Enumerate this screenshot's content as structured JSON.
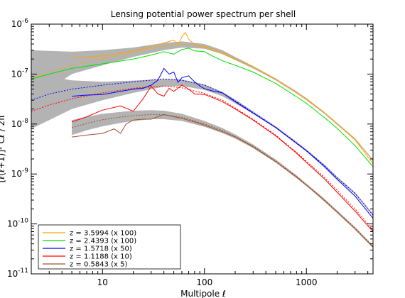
{
  "chart_data": {
    "type": "line",
    "title": "Lensing potential power spectrum per shell",
    "xlabel": "Multipole  ℓ",
    "ylabel": "[ℓ(ℓ+1)]² Cℓ / 2π",
    "xscale": "log",
    "yscale": "log",
    "xlim": [
      2,
      4500
    ],
    "ylim": [
      1e-11,
      1e-06
    ],
    "x_ticks": [
      {
        "value": 10,
        "label": "10"
      },
      {
        "value": 100,
        "label": "100"
      },
      {
        "value": 1000,
        "label": "1000"
      }
    ],
    "y_ticks": [
      {
        "value": 1e-11,
        "exp": "-11"
      },
      {
        "value": 1e-10,
        "exp": "-10"
      },
      {
        "value": 1e-09,
        "exp": "-9"
      },
      {
        "value": 1e-08,
        "exp": "-8"
      },
      {
        "value": 1e-07,
        "exp": "-7"
      },
      {
        "value": 1e-06,
        "exp": "-6"
      }
    ],
    "legend_position": "bottom-left",
    "series": [
      {
        "name": "z = 3.5994 (x 100)",
        "color": "#ffa500",
        "band_x": [
          2,
          3,
          5,
          10,
          20,
          40,
          60,
          100,
          150,
          200,
          300,
          500,
          800,
          1000,
          1500,
          2000,
          3000,
          4500
        ],
        "band_lo": [
          2e-08,
          5e-08,
          1e-07,
          1.5e-07,
          2.2e-07,
          3e-07,
          3.4e-07,
          3.2e-07,
          2.5e-07,
          1.9e-07,
          1.3e-07,
          7.5e-08,
          4.1e-08,
          3e-08,
          1.6e-08,
          9.6e-09,
          4.8e-09,
          1.8e-09
        ],
        "band_hi": [
          3e-07,
          2.9e-07,
          2.8e-07,
          3e-07,
          3.4e-07,
          4.2e-07,
          4.5e-07,
          4e-07,
          3e-07,
          2.2e-07,
          1.45e-07,
          8.2e-08,
          4.5e-08,
          3.3e-08,
          1.75e-08,
          1.05e-08,
          5.2e-09,
          1.95e-09
        ],
        "theory_x": [
          2,
          3,
          5,
          10,
          20,
          40,
          60,
          100,
          150,
          200,
          300,
          500,
          800,
          1000,
          1500,
          2000,
          3000,
          4500
        ],
        "theory_y": [
          8e-08,
          1.1e-07,
          1.5e-07,
          2e-07,
          2.7e-07,
          3.6e-07,
          4e-07,
          3.6e-07,
          2.8e-07,
          2.05e-07,
          1.37e-07,
          7.8e-08,
          4.3e-08,
          3.15e-08,
          1.68e-08,
          1e-08,
          5e-09,
          1.85e-09
        ],
        "sim_x": [
          5,
          7,
          10,
          15,
          20,
          25,
          30,
          35,
          40,
          45,
          50,
          55,
          60,
          65,
          70,
          80,
          90,
          100,
          120,
          150,
          200,
          300,
          500,
          800,
          1000,
          1500,
          2000,
          3000,
          4500
        ],
        "sim_y": [
          2.1e-07,
          2.2e-07,
          2.3e-07,
          2.6e-07,
          2.9e-07,
          3.2e-07,
          3.6e-07,
          3.9e-07,
          4.2e-07,
          4.5e-07,
          4.8e-07,
          3.8e-07,
          5.6e-07,
          6.8e-07,
          5e-07,
          3.9e-07,
          3.6e-07,
          3.5e-07,
          3e-07,
          2.6e-07,
          2e-07,
          1.38e-07,
          7.8e-08,
          4.3e-08,
          3.1e-08,
          1.7e-08,
          1e-08,
          4.8e-09,
          1.6e-09
        ]
      },
      {
        "name": "z = 2.4393 (x 100)",
        "color": "#00e000",
        "band_x": [],
        "band_lo": [],
        "band_hi": [],
        "theory_x": [],
        "theory_y": [],
        "sim_x": [
          2,
          3,
          5,
          10,
          20,
          30,
          40,
          50,
          60,
          70,
          80,
          100,
          120,
          150,
          200,
          300,
          500,
          800,
          1000,
          1500,
          2000,
          3000,
          4500
        ],
        "sim_y": [
          8e-08,
          1e-07,
          1.3e-07,
          1.6e-07,
          2e-07,
          2.4e-07,
          2.8e-07,
          2.5e-07,
          3.1e-07,
          3.3e-07,
          2.9e-07,
          2.8e-07,
          2.3e-07,
          1.85e-07,
          1.5e-07,
          1.1e-07,
          6.5e-08,
          3.5e-08,
          2.6e-08,
          1.35e-08,
          8.2e-09,
          3.7e-09,
          1.4e-09
        ]
      },
      {
        "name": "z = 1.5718 (x 50)",
        "color": "#0000ff",
        "band_x": [
          2,
          3,
          5,
          10,
          20,
          40,
          60,
          100,
          150,
          200,
          300,
          500,
          800,
          1000,
          1500,
          2000,
          3000,
          4500
        ],
        "band_lo": [
          8e-09,
          1.2e-08,
          2e-08,
          3e-08,
          4.2e-08,
          5.6e-08,
          5.8e-08,
          4.8e-08,
          3.6e-08,
          2.6e-08,
          1.6e-08,
          8.2e-09,
          4e-09,
          2.8e-09,
          1.4e-09,
          8e-10,
          3.9e-10,
          1.45e-10
        ],
        "band_hi": [
          1e-07,
          9e-08,
          7.5e-08,
          7e-08,
          7.4e-08,
          8e-08,
          7.8e-08,
          6.2e-08,
          4.4e-08,
          3.1e-08,
          1.8e-08,
          9e-09,
          4.4e-09,
          3.1e-09,
          1.55e-09,
          8.8e-10,
          4.3e-10,
          1.6e-10
        ],
        "theory_x": [
          2,
          3,
          5,
          10,
          20,
          40,
          60,
          100,
          150,
          200,
          300,
          500,
          800,
          1000,
          1500,
          2000,
          3000,
          4500
        ],
        "theory_y": [
          3e-08,
          4e-08,
          5e-08,
          6e-08,
          7e-08,
          8e-08,
          7.5e-08,
          6e-08,
          4.2e-08,
          2.9e-08,
          1.7e-08,
          8.6e-09,
          4.2e-09,
          2.95e-09,
          1.48e-09,
          8.4e-10,
          4.1e-10,
          1.5e-10
        ],
        "sim_x": [
          5,
          7,
          10,
          15,
          20,
          25,
          30,
          35,
          40,
          45,
          50,
          55,
          60,
          70,
          80,
          90,
          100,
          120,
          150,
          200,
          300,
          500,
          800,
          1000,
          1500,
          2000,
          3000,
          4500
        ],
        "sim_y": [
          3.6e-08,
          3.8e-08,
          3.9e-08,
          4.5e-08,
          5e-08,
          5.2e-08,
          6e-08,
          7.6e-08,
          1.3e-07,
          1e-07,
          1.1e-07,
          6.8e-08,
          8.5e-08,
          9.2e-08,
          7e-08,
          5.8e-08,
          5.1e-08,
          4.6e-08,
          4.2e-08,
          2.8e-08,
          1.65e-08,
          8.5e-09,
          4.1e-09,
          2.9e-09,
          1.4e-09,
          7.8e-10,
          3.6e-10,
          1.3e-10
        ]
      },
      {
        "name": "z = 1.1188 (x 10)",
        "color": "#ff0000",
        "band_x": [],
        "band_lo": [],
        "band_hi": [],
        "theory_x": [
          2,
          3,
          5,
          10,
          20,
          40,
          60,
          100,
          150,
          200,
          300,
          500,
          800,
          1000,
          1500,
          2000,
          3000,
          4500
        ],
        "theory_y": [
          1.8e-08,
          2.4e-08,
          3.2e-08,
          4.2e-08,
          5.2e-08,
          5.8e-08,
          5.3e-08,
          4.1e-08,
          3e-08,
          2.1e-08,
          1.25e-08,
          6e-09,
          2.7e-09,
          1.8e-09,
          8.6e-10,
          4.7e-10,
          2e-10,
          7.5e-11
        ],
        "sim_x": [
          5,
          7,
          10,
          15,
          20,
          25,
          30,
          35,
          40,
          45,
          50,
          60,
          70,
          80,
          100,
          120,
          150,
          200,
          300,
          500,
          800,
          1000,
          1500,
          2000,
          3000,
          4500
        ],
        "sim_y": [
          1.1e-08,
          1.4e-08,
          1.9e-08,
          2.3e-08,
          1.8e-08,
          3.2e-08,
          5.7e-08,
          4e-08,
          3.6e-08,
          5.2e-08,
          4.5e-08,
          6e-08,
          5e-08,
          4e-08,
          3.9e-08,
          3.4e-08,
          2.8e-08,
          2e-08,
          1.2e-08,
          5.8e-09,
          2.6e-09,
          1.7e-09,
          8e-10,
          4.3e-10,
          1.8e-10,
          7e-11
        ]
      },
      {
        "name": "z = 0.5843 (x 5)",
        "color": "#a0522d",
        "band_x": [
          5,
          7,
          10,
          15,
          20,
          30,
          40,
          60,
          100,
          150,
          200,
          300,
          500,
          800,
          1000,
          1500,
          2000,
          3000,
          4500
        ],
        "band_lo": [
          6e-09,
          7.5e-09,
          9e-09,
          1.05e-08,
          1.15e-08,
          1.25e-08,
          1.25e-08,
          1.15e-08,
          8.8e-09,
          6.6e-09,
          5.1e-09,
          3.3e-09,
          1.7e-09,
          8.4e-10,
          5.8e-10,
          2.9e-10,
          1.7e-10,
          8e-11,
          3.4e-11
        ],
        "band_hi": [
          1.2e-08,
          1.4e-08,
          1.6e-08,
          1.75e-08,
          1.85e-08,
          1.9e-08,
          1.85e-08,
          1.6e-08,
          1.15e-08,
          8.3e-09,
          6.2e-09,
          3.9e-09,
          1.95e-09,
          9.4e-10,
          6.4e-10,
          3.2e-10,
          1.85e-10,
          8.7e-11,
          3.7e-11
        ],
        "theory_x": [
          5,
          7,
          10,
          15,
          20,
          30,
          40,
          60,
          100,
          150,
          200,
          300,
          500,
          800,
          1000,
          1500,
          2000,
          3000,
          4500
        ],
        "theory_y": [
          8.5e-09,
          1.03e-08,
          1.22e-08,
          1.38e-08,
          1.47e-08,
          1.55e-08,
          1.53e-08,
          1.36e-08,
          1e-08,
          7.4e-09,
          5.6e-09,
          3.6e-09,
          1.82e-09,
          8.9e-10,
          6.1e-10,
          3.05e-10,
          1.78e-10,
          8.3e-11,
          3.55e-11
        ],
        "sim_x": [
          5,
          7,
          10,
          13,
          15,
          17,
          20,
          25,
          30,
          40,
          50,
          60,
          80,
          100,
          150,
          200,
          300,
          500,
          800,
          1000,
          1500,
          2000,
          3000,
          4500
        ],
        "sim_y": [
          5.5e-09,
          6e-09,
          6.5e-09,
          8e-09,
          6.5e-09,
          1e-08,
          1.2e-08,
          1.25e-08,
          1.25e-08,
          1.55e-08,
          1.4e-08,
          1.3e-08,
          1.1e-08,
          9.5e-09,
          7e-09,
          5.5e-09,
          3.5e-09,
          1.75e-09,
          8.5e-10,
          5.9e-10,
          2.9e-10,
          1.7e-10,
          7.9e-11,
          3.4e-11
        ]
      }
    ]
  }
}
